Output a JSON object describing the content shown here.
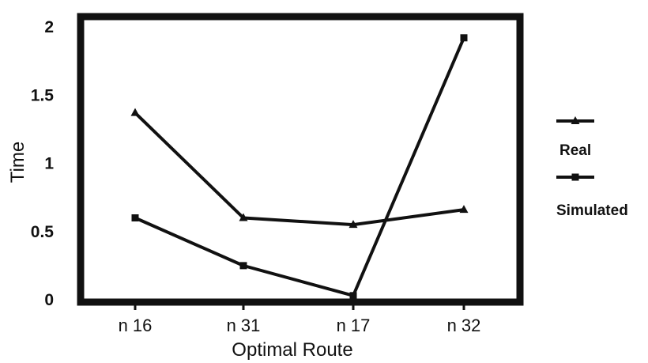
{
  "chart_data": {
    "type": "line",
    "xlabel": "Optimal Route",
    "ylabel": "Time",
    "categories": [
      "n 16",
      "n 31",
      "n 17",
      "n 32"
    ],
    "ylim": [
      0,
      2
    ],
    "yticks": [
      0,
      0.5,
      1,
      1.5,
      2
    ],
    "ytick_labels": [
      "0",
      "0.5",
      "1",
      "1.5",
      "2"
    ],
    "grid": false,
    "legend_position": "right",
    "series": [
      {
        "name": "Real",
        "marker": "triangle",
        "values": [
          1.37,
          0.6,
          0.55,
          0.66
        ]
      },
      {
        "name": "Simulated",
        "marker": "square",
        "values": [
          0.6,
          0.25,
          0.03,
          1.92
        ]
      }
    ],
    "colors": {
      "line": "#111111",
      "frame": "#111111",
      "background": "#ffffff"
    }
  }
}
